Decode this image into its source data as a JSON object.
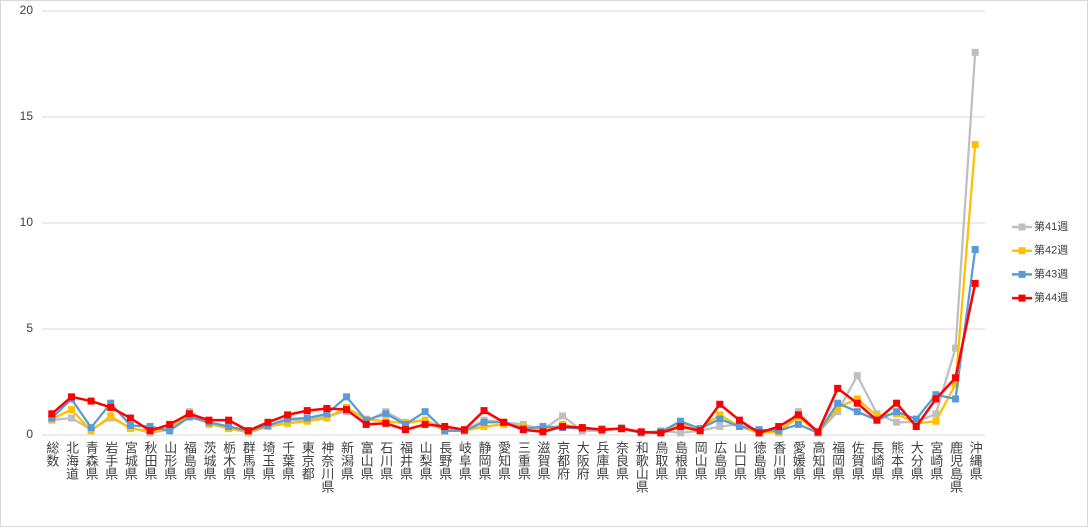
{
  "chart_data": {
    "type": "line",
    "categories": [
      "総数",
      "北海道",
      "青森県",
      "岩手県",
      "宮城県",
      "秋田県",
      "山形県",
      "福島県",
      "茨城県",
      "栃木県",
      "群馬県",
      "埼玉県",
      "千葉県",
      "東京都",
      "神奈川県",
      "新潟県",
      "富山県",
      "石川県",
      "福井県",
      "山梨県",
      "長野県",
      "岐阜県",
      "静岡県",
      "愛知県",
      "三重県",
      "滋賀県",
      "京都府",
      "大阪府",
      "兵庫県",
      "奈良県",
      "和歌山県",
      "鳥取県",
      "島根県",
      "岡山県",
      "広島県",
      "山口県",
      "徳島県",
      "香川県",
      "愛媛県",
      "高知県",
      "福岡県",
      "佐賀県",
      "長崎県",
      "熊本県",
      "大分県",
      "宮崎県",
      "鹿児島県",
      "沖縄県"
    ],
    "series": [
      {
        "name": "第41週",
        "color": "#bfbfbf",
        "values": [
          0.7,
          0.8,
          0.25,
          0.8,
          0.35,
          0.1,
          0.25,
          1.1,
          0.5,
          0.35,
          0.1,
          0.4,
          0.7,
          0.7,
          0.9,
          1.1,
          0.65,
          1.1,
          0.6,
          0.7,
          0.3,
          0.2,
          0.7,
          0.6,
          0.5,
          0.25,
          0.9,
          0.2,
          0.2,
          0.35,
          0.1,
          0.2,
          0.1,
          0.2,
          0.4,
          0.5,
          0.2,
          0.1,
          1.1,
          0.1,
          1.1,
          2.8,
          1.0,
          0.6,
          0.6,
          1.0,
          4.1,
          18.05
        ]
      },
      {
        "name": "第42週",
        "color": "#ffc000",
        "values": [
          0.75,
          1.2,
          0.2,
          0.9,
          0.3,
          0.2,
          0.3,
          0.9,
          0.55,
          0.3,
          0.15,
          0.4,
          0.55,
          0.65,
          0.8,
          1.3,
          0.75,
          0.65,
          0.55,
          0.7,
          0.2,
          0.2,
          0.4,
          0.5,
          0.4,
          0.2,
          0.5,
          0.3,
          0.3,
          0.3,
          0.1,
          0.1,
          0.55,
          0.3,
          0.95,
          0.4,
          0.1,
          0.15,
          0.85,
          0.1,
          1.3,
          1.7,
          0.9,
          1.0,
          0.55,
          0.65,
          2.4,
          13.7
        ]
      },
      {
        "name": "第43週",
        "color": "#5b9bd5",
        "values": [
          0.8,
          1.7,
          0.35,
          1.5,
          0.45,
          0.4,
          0.2,
          0.85,
          0.6,
          0.4,
          0.2,
          0.45,
          0.75,
          0.8,
          1.0,
          1.8,
          0.7,
          1.0,
          0.5,
          1.1,
          0.2,
          0.2,
          0.6,
          0.6,
          0.3,
          0.4,
          0.35,
          0.3,
          0.25,
          0.3,
          0.1,
          0.15,
          0.65,
          0.3,
          0.75,
          0.4,
          0.25,
          0.2,
          0.5,
          0.1,
          1.5,
          1.1,
          0.7,
          1.1,
          0.75,
          1.9,
          1.7,
          8.75
        ]
      },
      {
        "name": "第44週",
        "color": "#ff0000",
        "values": [
          1.0,
          1.8,
          1.6,
          1.3,
          0.8,
          0.2,
          0.5,
          1.0,
          0.7,
          0.7,
          0.2,
          0.6,
          0.95,
          1.15,
          1.25,
          1.2,
          0.5,
          0.55,
          0.25,
          0.5,
          0.4,
          0.25,
          1.15,
          0.6,
          0.25,
          0.15,
          0.4,
          0.35,
          0.25,
          0.3,
          0.15,
          0.1,
          0.4,
          0.2,
          1.45,
          0.7,
          0.1,
          0.4,
          0.95,
          0.15,
          2.2,
          1.5,
          0.7,
          1.5,
          0.4,
          1.7,
          2.7,
          7.15
        ]
      }
    ],
    "ylim": [
      0,
      20
    ],
    "yticks": [
      0,
      5,
      10,
      15,
      20
    ],
    "grid": true,
    "legend": "right"
  }
}
